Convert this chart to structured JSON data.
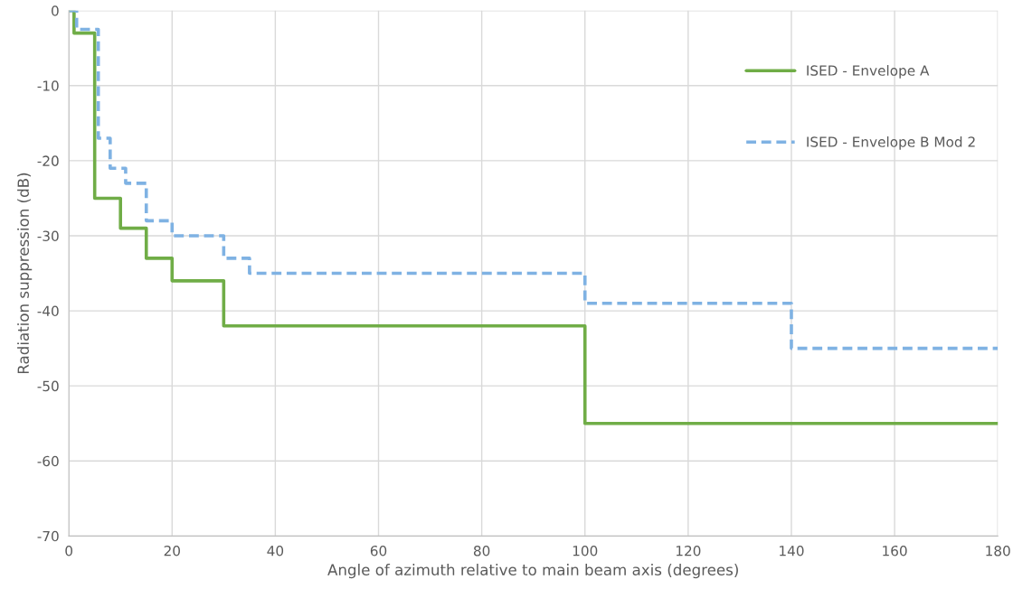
{
  "chart_data": {
    "type": "step",
    "xlabel": "Angle of azimuth relative to main beam axis (degrees)",
    "ylabel": "Radiation suppression (dB)",
    "series": [
      {
        "name": "ISED - Envelope A",
        "color": "#70ad47",
        "line_style": "solid",
        "x": [
          0,
          1,
          5,
          10,
          15,
          20,
          30,
          100,
          180
        ],
        "values": [
          0,
          -3,
          -25,
          -29,
          -33,
          -36,
          -42,
          -55,
          -55
        ]
      },
      {
        "name": "ISED - Envelope B Mod 2",
        "color": "#7fb2e3",
        "line_style": "dashed",
        "x": [
          0,
          1.5,
          5.7,
          8,
          11,
          15,
          20,
          30,
          35,
          100,
          140,
          180
        ],
        "values": [
          0,
          -2.5,
          -17,
          -21,
          -23,
          -28,
          -30,
          -33,
          -35,
          -39,
          -45,
          -45
        ]
      }
    ],
    "xlim": [
      0,
      180
    ],
    "xticks": [
      0,
      20,
      40,
      60,
      80,
      100,
      120,
      140,
      160,
      180
    ],
    "ylim": [
      -70,
      0
    ],
    "yticks": [
      -70,
      -60,
      -50,
      -40,
      -30,
      -20,
      -10,
      0
    ],
    "grid": true,
    "legend": "top right"
  }
}
